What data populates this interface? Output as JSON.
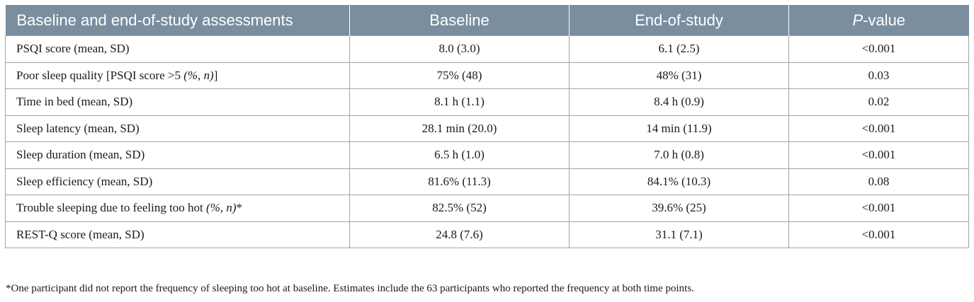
{
  "header": {
    "col1": "Baseline and end-of-study assessments",
    "col2": "Baseline",
    "col3": "End-of-study",
    "col4_italic": "P",
    "col4_rest": "-value"
  },
  "rows": [
    {
      "label": "PSQI score (mean, SD)",
      "label_italic": "",
      "label_suffix": "",
      "baseline": "8.0 (3.0)",
      "end": "6.1 (2.5)",
      "p": "<0.001"
    },
    {
      "label": "Poor sleep quality [PSQI score >5 ",
      "label_italic": "(%, n)",
      "label_suffix": "]",
      "baseline": "75% (48)",
      "end": "48% (31)",
      "p": "0.03"
    },
    {
      "label": "Time in bed (mean, SD)",
      "label_italic": "",
      "label_suffix": "",
      "baseline": "8.1 h (1.1)",
      "end": "8.4 h (0.9)",
      "p": "0.02"
    },
    {
      "label": "Sleep latency (mean, SD)",
      "label_italic": "",
      "label_suffix": "",
      "baseline": "28.1 min (20.0)",
      "end": "14 min (11.9)",
      "p": "<0.001"
    },
    {
      "label": "Sleep duration (mean, SD)",
      "label_italic": "",
      "label_suffix": "",
      "baseline": "6.5 h (1.0)",
      "end": "7.0 h (0.8)",
      "p": "<0.001"
    },
    {
      "label": "Sleep efficiency (mean, SD)",
      "label_italic": "",
      "label_suffix": "",
      "baseline": "81.6% (11.3)",
      "end": "84.1% (10.3)",
      "p": "0.08"
    },
    {
      "label": "Trouble sleeping due to feeling too hot ",
      "label_italic": "(%, n)",
      "label_suffix": "*",
      "baseline": "82.5% (52)",
      "end": "39.6% (25)",
      "p": "<0.001"
    },
    {
      "label": "REST-Q score (mean, SD)",
      "label_italic": "",
      "label_suffix": "",
      "baseline": "24.8 (7.6)",
      "end": "31.1 (7.1)",
      "p": "<0.001"
    }
  ],
  "footnote": "*One participant did not report the frequency of sleeping too hot at baseline. Estimates include the 63 participants who reported the frequency at both time points."
}
